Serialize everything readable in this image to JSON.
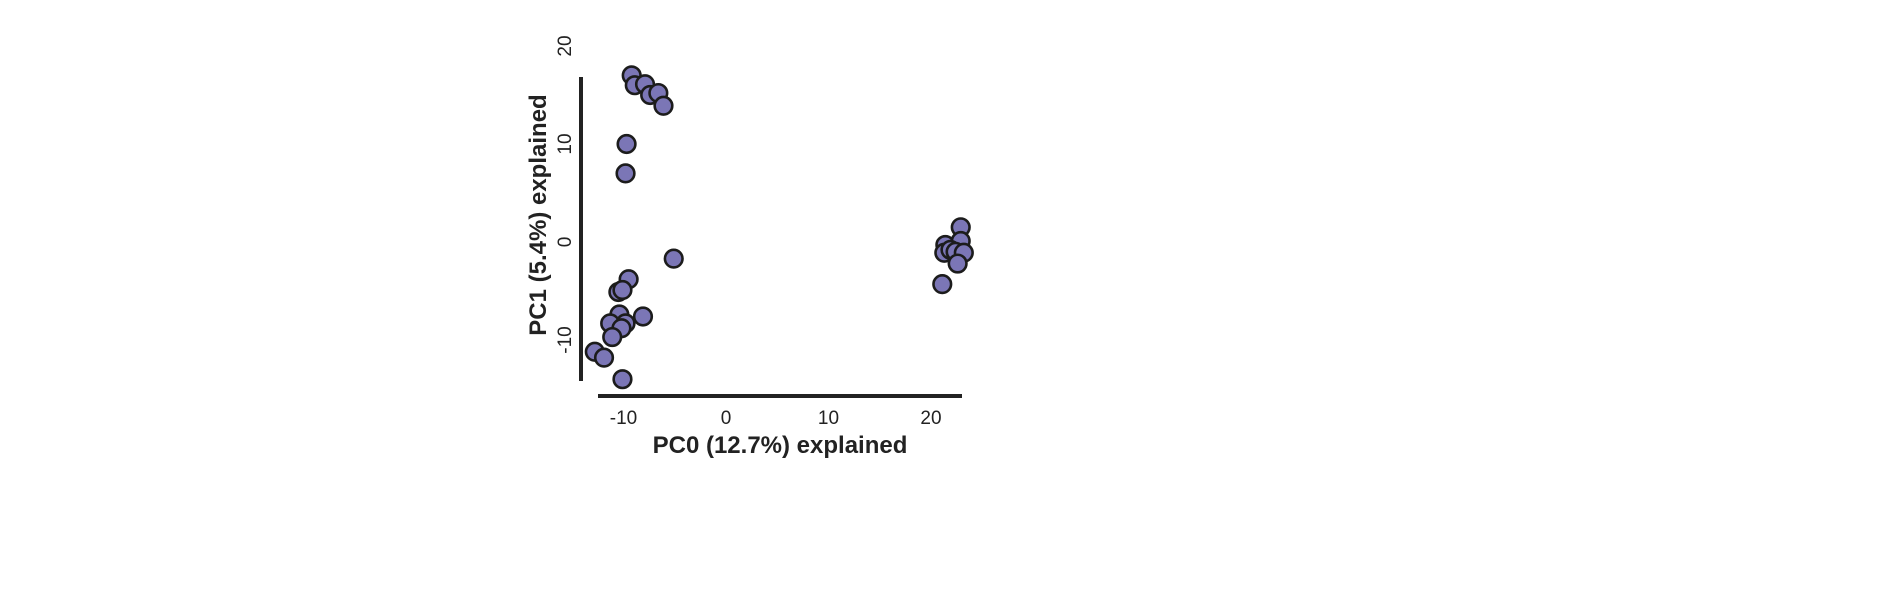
{
  "chart_data": {
    "type": "scatter",
    "xlabel": "PC0 (12.7%) explained",
    "ylabel": "PC1 (5.4%) explained",
    "xticks": [
      -10,
      0,
      10,
      20
    ],
    "yticks": [
      -10,
      0,
      10,
      20
    ],
    "xlim": [
      -12.5,
      23.0
    ],
    "ylim": [
      -14.0,
      16.5
    ],
    "grid": false,
    "legend": "none",
    "marker_fill": "#7b76b6",
    "marker_edge": "#1c1c1c",
    "axis_color": "#222222",
    "points": [
      {
        "x": -9.2,
        "y": 17.0
      },
      {
        "x": -8.9,
        "y": 16.0
      },
      {
        "x": -7.9,
        "y": 16.1
      },
      {
        "x": -7.4,
        "y": 15.0
      },
      {
        "x": -6.6,
        "y": 15.2
      },
      {
        "x": -6.1,
        "y": 13.9
      },
      {
        "x": -9.7,
        "y": 10.0
      },
      {
        "x": -9.8,
        "y": 7.0
      },
      {
        "x": -5.1,
        "y": -1.7
      },
      {
        "x": -9.5,
        "y": -3.8
      },
      {
        "x": -10.5,
        "y": -5.1
      },
      {
        "x": -10.1,
        "y": -4.9
      },
      {
        "x": -10.4,
        "y": -7.4
      },
      {
        "x": -8.1,
        "y": -7.6
      },
      {
        "x": -11.3,
        "y": -8.3
      },
      {
        "x": -9.8,
        "y": -8.3
      },
      {
        "x": -10.2,
        "y": -8.8
      },
      {
        "x": -11.1,
        "y": -9.7
      },
      {
        "x": -12.8,
        "y": -11.2
      },
      {
        "x": -11.9,
        "y": -11.8
      },
      {
        "x": -10.1,
        "y": -14.0
      },
      {
        "x": 22.9,
        "y": 1.5
      },
      {
        "x": 21.4,
        "y": -0.3
      },
      {
        "x": 22.9,
        "y": 0.1
      },
      {
        "x": 21.3,
        "y": -1.1
      },
      {
        "x": 21.9,
        "y": -0.8
      },
      {
        "x": 22.4,
        "y": -1.0
      },
      {
        "x": 23.2,
        "y": -1.1
      },
      {
        "x": 22.6,
        "y": -2.2
      },
      {
        "x": 21.1,
        "y": -4.3
      }
    ]
  }
}
